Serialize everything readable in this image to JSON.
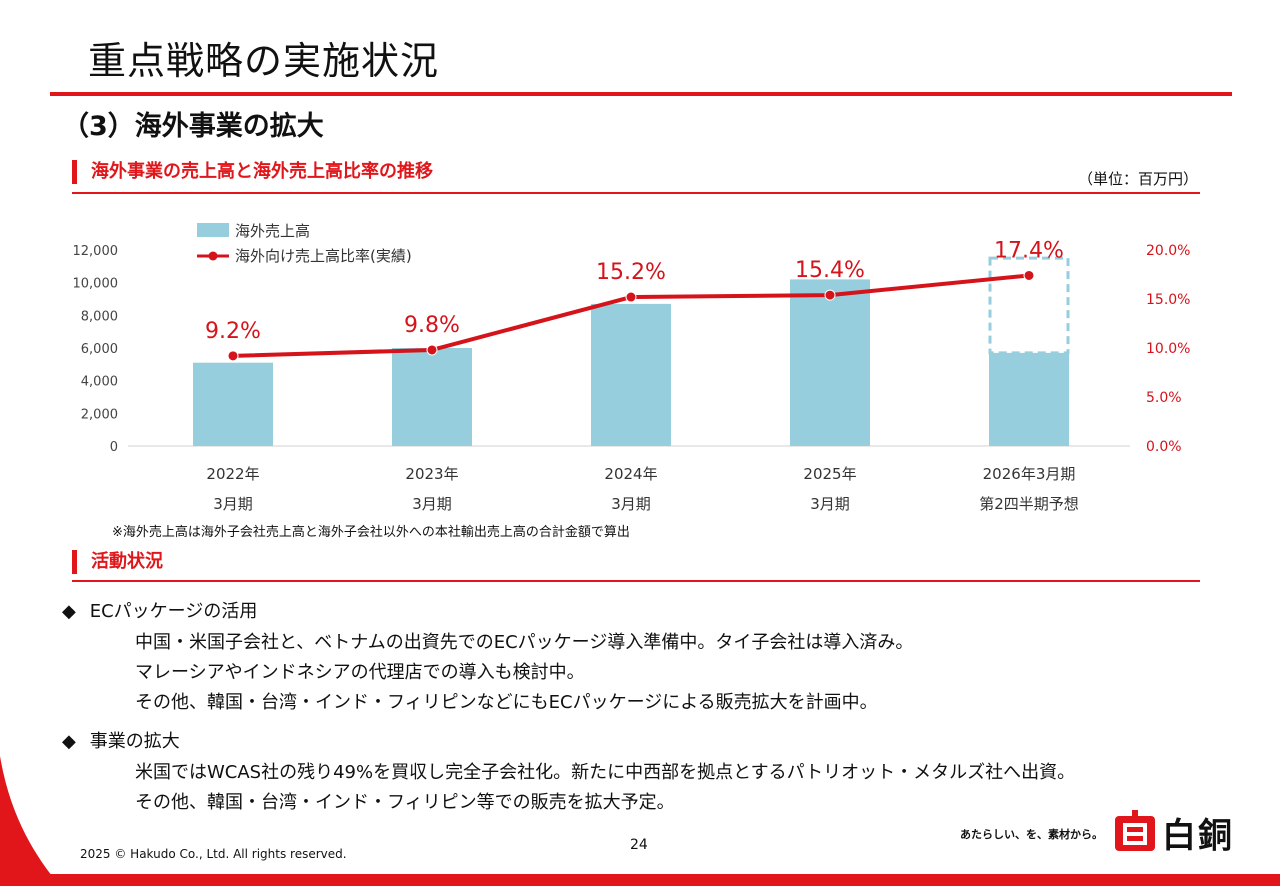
{
  "slide": {
    "title": "重点戦略の実施状況",
    "section": "（3）海外事業の拡大",
    "chart_heading": "海外事業の売上高と海外売上高比率の推移",
    "unit": "（単位：百万円）",
    "footnote": "※海外売上高は海外子会社売上高と海外子会社以外への本社輸出売上高の合計金額で算出",
    "activity_heading": "活動状況",
    "page_number": "24",
    "copyright": "2025 © Hakudo Co., Ltd. All rights reserved.",
    "tagline": "あたらしい、を、素材から。",
    "logo_text": "白銅",
    "bullet_marker": "◆"
  },
  "activities": [
    {
      "title": "ECパッケージの活用",
      "lines": [
        "中国・米国子会社と、ベトナムの出資先でのECパッケージ導入準備中。タイ子会社は導入済み。",
        "マレーシアやインドネシアの代理店での導入も検討中。",
        "その他、韓国・台湾・インド・フィリピンなどにもECパッケージによる販売拡大を計画中。"
      ]
    },
    {
      "title": "事業の拡大",
      "lines": [
        "米国ではWCAS社の残り49%を買収し完全子会社化。新たに中西部を拠点とするパトリオット・メタルズ社へ出資。",
        "その他、韓国・台湾・インド・フィリピン等での販売を拡大予定。"
      ]
    }
  ],
  "chart_data": {
    "type": "bar",
    "title": "海外事業の売上高と海外売上高比率の推移",
    "categories": [
      [
        "2022年",
        "3月期"
      ],
      [
        "2023年",
        "3月期"
      ],
      [
        "2024年",
        "3月期"
      ],
      [
        "2025年",
        "3月期"
      ],
      [
        "2026年3月期",
        "第2四半期予想"
      ]
    ],
    "series": [
      {
        "name": "海外売上高",
        "kind": "bar",
        "axis": "left",
        "values": [
          5100,
          6000,
          8700,
          10200,
          5700
        ],
        "forecast_full_year": 11500,
        "color": "#96cedd"
      },
      {
        "name": "海外向け売上高比率(実績)",
        "kind": "line",
        "axis": "right",
        "values": [
          9.2,
          9.8,
          15.2,
          15.4,
          17.4
        ],
        "labels": [
          "9.2%",
          "9.8%",
          "15.2%",
          "15.4%",
          "17.4%"
        ],
        "color": "#d5131b"
      }
    ],
    "y_left": {
      "min": 0,
      "max": 12000,
      "ticks": [
        "0",
        "2,000",
        "4,000",
        "6,000",
        "8,000",
        "10,000",
        "12,000"
      ]
    },
    "y_right": {
      "min": 0,
      "max": 20,
      "ticks": [
        "0.0%",
        "5.0%",
        "10.0%",
        "15.0%",
        "20.0%"
      ]
    },
    "legend": "top-left"
  }
}
